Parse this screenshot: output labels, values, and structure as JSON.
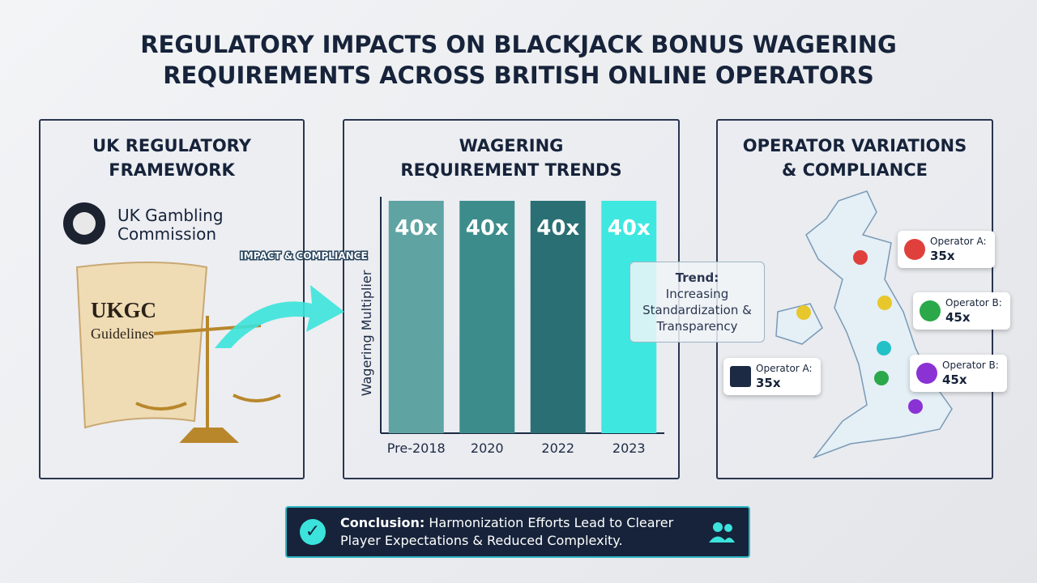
{
  "title": "REGULATORY IMPACTS ON BLACKJACK BONUS WAGERING REQUIREMENTS ACROSS BRITISH ONLINE OPERATORS",
  "framework": {
    "title": "UK REGULATORY FRAMEWORK",
    "logo": "UK Gambling Commission",
    "scroll_title": "UKGC",
    "scroll_subtitle": "Guidelines"
  },
  "arrow_label": "IMPACT & COMPLIANCE",
  "chart_data": {
    "type": "bar",
    "title": "WAGERING REQUIREMENT TRENDS",
    "y_label": "Wagering Multiplier",
    "categories": [
      "Pre-2018",
      "2020",
      "2022",
      "2023"
    ],
    "values": [
      40,
      40,
      40,
      40
    ],
    "value_labels": [
      "40x",
      "40x",
      "40x",
      "40x"
    ],
    "colors": [
      "#5fa3a3",
      "#3d8c8c",
      "#2a6f73",
      "#3ee8e0"
    ],
    "annotation": {
      "title": "Trend:",
      "text": "Increasing Standardization & Transparency"
    }
  },
  "operators": {
    "title": "OPERATOR VARIATIONS & COMPLIANCE",
    "callouts": [
      {
        "name": "Operator A:",
        "value": "35x"
      },
      {
        "name": "Operator B:",
        "value": "45x"
      },
      {
        "name": "Operator A:",
        "value": "35x"
      },
      {
        "name": "Operator B:",
        "value": "45x"
      }
    ]
  },
  "conclusion": {
    "label": "Conclusion:",
    "text": "Harmonization Efforts Lead to Clearer Player Expectations & Reduced Complexity."
  }
}
